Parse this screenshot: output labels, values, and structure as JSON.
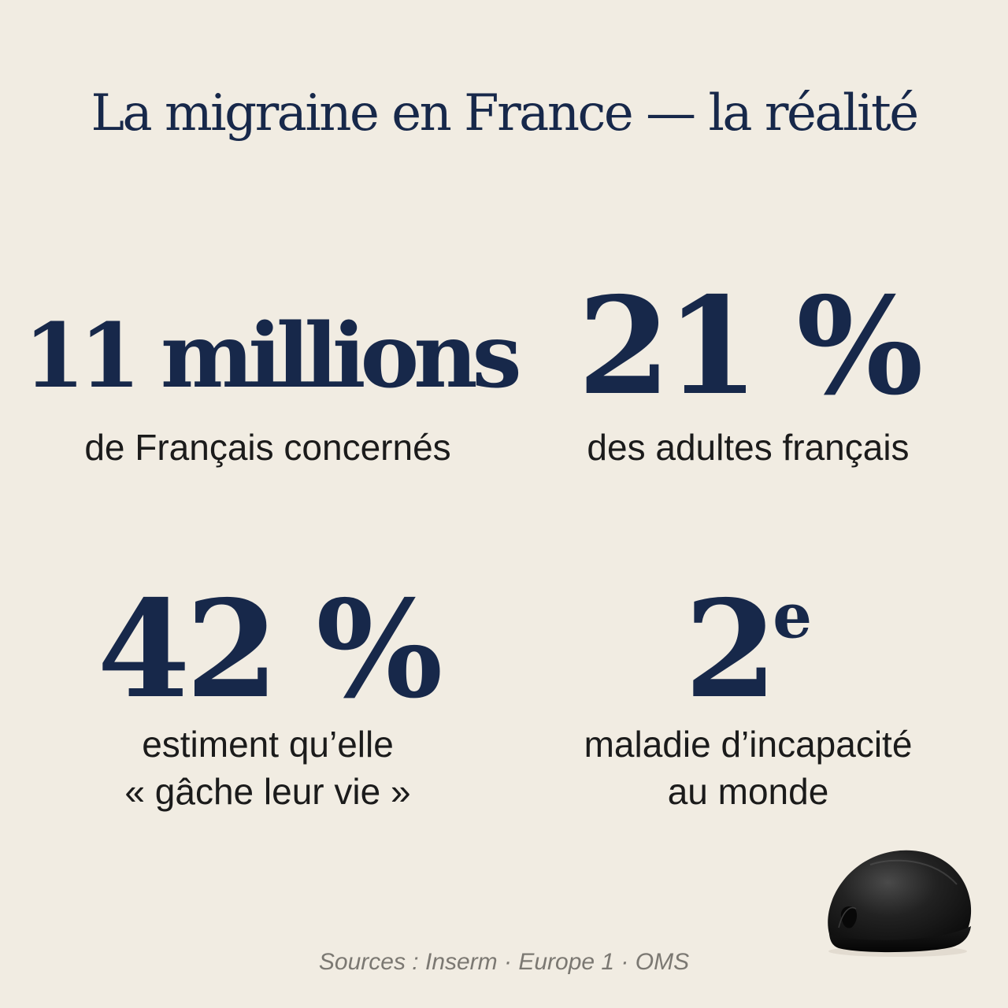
{
  "title": "La migraine en France — la réalité",
  "stats": [
    {
      "value": "11 millions",
      "description": [
        "de Français concernés"
      ]
    },
    {
      "value": "21 %",
      "description": [
        "des adultes français"
      ]
    },
    {
      "value": "42 %",
      "description": [
        "estiment qu’elle",
        "« gâche leur vie »"
      ]
    },
    {
      "value": "2",
      "value_suffix": "e",
      "description": [
        "maladie d’incapacité",
        "au monde"
      ]
    }
  ],
  "sources": "Sources : Inserm · Europe 1 · OMS",
  "colors": {
    "background": "#F1ECE2",
    "navy": "#17284A",
    "body_text": "#1B1B1B",
    "muted": "#7B7872"
  },
  "image": "black-migraine-cap-product"
}
